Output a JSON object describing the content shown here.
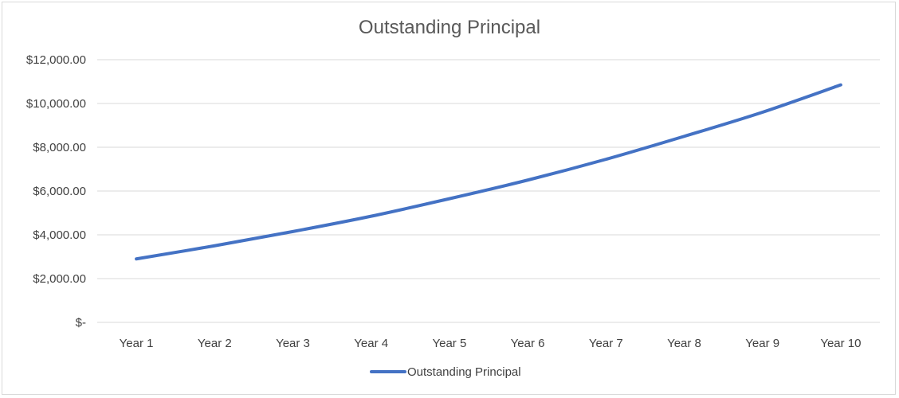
{
  "chart_data": {
    "type": "line",
    "title": "Outstanding Principal",
    "xlabel": "",
    "ylabel": "",
    "categories": [
      "Year 1",
      "Year 2",
      "Year 3",
      "Year 4",
      "Year 5",
      "Year 6",
      "Year 7",
      "Year 8",
      "Year 9",
      "Year 10"
    ],
    "series": [
      {
        "name": "Outstanding Principal",
        "color": "#4472c4",
        "values": [
          2900,
          3500,
          4150,
          4850,
          5650,
          6500,
          7450,
          8500,
          9600,
          10850
        ]
      }
    ],
    "ylim": [
      0,
      12000
    ],
    "y_ticks": [
      0,
      2000,
      4000,
      6000,
      8000,
      10000,
      12000
    ],
    "y_tick_labels": [
      "$-",
      "$2,000.00",
      "$4,000.00",
      "$6,000.00",
      "$8,000.00",
      "$10,000.00",
      "$12,000.00"
    ],
    "grid": true,
    "legend_position": "bottom"
  }
}
